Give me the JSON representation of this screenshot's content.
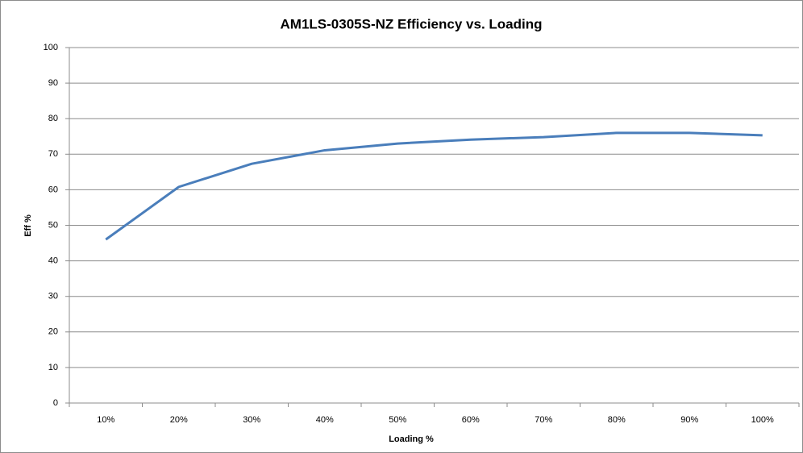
{
  "chart_data": {
    "type": "line",
    "title": "AM1LS-0305S-NZ Efficiency vs. Loading",
    "x_label": "Loading %",
    "y_label": "Eff %",
    "categories": [
      "10%",
      "20%",
      "30%",
      "40%",
      "50%",
      "60%",
      "70%",
      "80%",
      "90%",
      "100%"
    ],
    "series": [
      {
        "name": "Eff",
        "color": "#4a7ebb",
        "values": [
          46,
          60.8,
          67.3,
          71.1,
          73,
          74.1,
          74.8,
          76,
          76,
          75.3
        ]
      }
    ],
    "ylim": [
      0,
      100
    ],
    "yticks": [
      0,
      10,
      20,
      30,
      40,
      50,
      60,
      70,
      80,
      90,
      100
    ],
    "grid": true
  }
}
